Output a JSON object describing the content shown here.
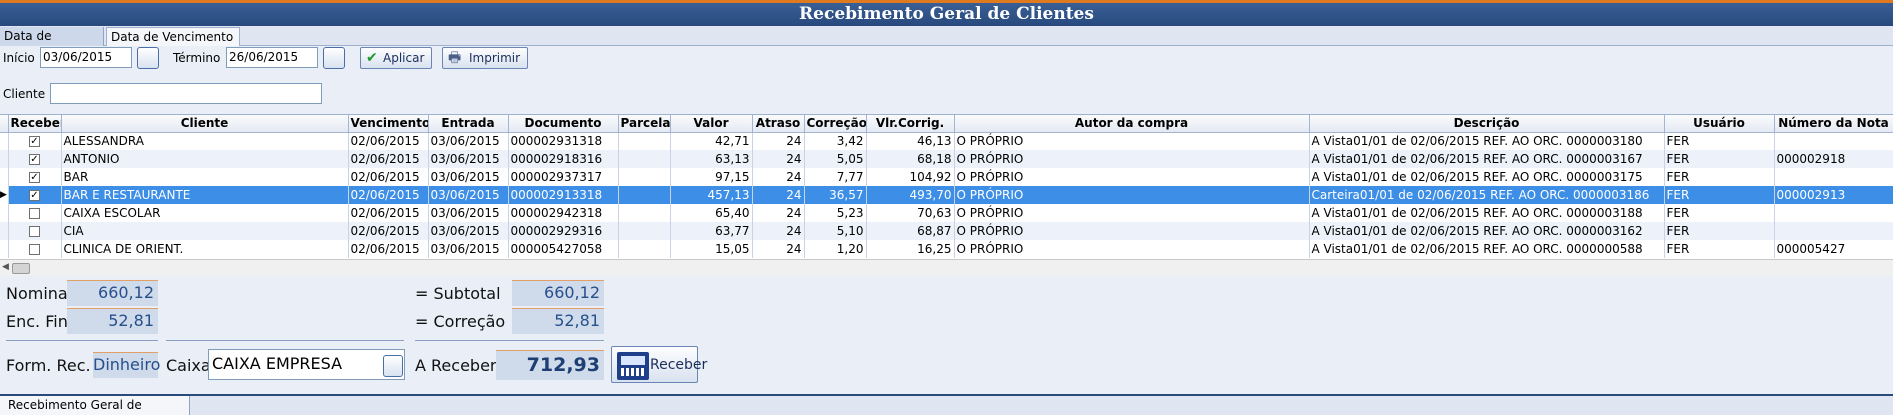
{
  "title": "Recebimento Geral de Clientes",
  "tabs": [
    "Data de Entrada",
    "Data de Vencimento"
  ],
  "filters": {
    "inicio_label": "Início",
    "inicio_value": "03/06/2015",
    "termino_label": "Término",
    "termino_value": "26/06/2015",
    "aplicar_label": "Aplicar",
    "imprimir_label": "Imprimir",
    "cliente_label": "Cliente",
    "cliente_value": ""
  },
  "grid": {
    "columns": [
      "Receber",
      "Cliente",
      "Vencimento",
      "Entrada",
      "Documento",
      "Parcela",
      "Valor",
      "Atraso",
      "Correção",
      "Vlr.Corrig.",
      "Autor da compra",
      "Descrição",
      "Usuário",
      "Número da Nota"
    ],
    "rows": [
      {
        "receber": true,
        "cliente": "ALESSANDRA",
        "vencimento": "02/06/2015",
        "entrada": "03/06/2015",
        "documento": "000002931318",
        "parcela": "",
        "valor": "42,71",
        "atraso": "24",
        "correcao": "3,42",
        "vlr_corrig": "46,13",
        "autor": "O PRÓPRIO",
        "descricao": "A Vista01/01 de 02/06/2015 REF. AO ORC. 0000003180",
        "usuario": "FER",
        "nota": ""
      },
      {
        "receber": true,
        "cliente": "ANTONIO",
        "vencimento": "02/06/2015",
        "entrada": "03/06/2015",
        "documento": "000002918316",
        "parcela": "",
        "valor": "63,13",
        "atraso": "24",
        "correcao": "5,05",
        "vlr_corrig": "68,18",
        "autor": "O PRÓPRIO",
        "descricao": "A Vista01/01 de 02/06/2015 REF. AO ORC. 0000003167",
        "usuario": "FER",
        "nota": "000002918"
      },
      {
        "receber": true,
        "cliente": "BAR",
        "vencimento": "02/06/2015",
        "entrada": "03/06/2015",
        "documento": "000002937317",
        "parcela": "",
        "valor": "97,15",
        "atraso": "24",
        "correcao": "7,77",
        "vlr_corrig": "104,92",
        "autor": "O PRÓPRIO",
        "descricao": "A Vista01/01 de 02/06/2015 REF. AO ORC. 0000003175",
        "usuario": "FER",
        "nota": ""
      },
      {
        "receber": true,
        "cliente": "BAR E RESTAURANTE",
        "vencimento": "02/06/2015",
        "entrada": "03/06/2015",
        "documento": "000002913318",
        "parcela": "",
        "valor": "457,13",
        "atraso": "24",
        "correcao": "36,57",
        "vlr_corrig": "493,70",
        "autor": "O PRÓPRIO",
        "descricao": "Carteira01/01 de 02/06/2015 REF. AO ORC. 0000003186",
        "usuario": "FER",
        "nota": "000002913",
        "selected": true
      },
      {
        "receber": false,
        "cliente": "CAIXA ESCOLAR",
        "vencimento": "02/06/2015",
        "entrada": "03/06/2015",
        "documento": "000002942318",
        "parcela": "",
        "valor": "65,40",
        "atraso": "24",
        "correcao": "5,23",
        "vlr_corrig": "70,63",
        "autor": "O PRÓPRIO",
        "descricao": "A Vista01/01 de 02/06/2015 REF. AO ORC. 0000003188",
        "usuario": "FER",
        "nota": ""
      },
      {
        "receber": false,
        "cliente": "CIA",
        "vencimento": "02/06/2015",
        "entrada": "03/06/2015",
        "documento": "000002929316",
        "parcela": "",
        "valor": "63,77",
        "atraso": "24",
        "correcao": "5,10",
        "vlr_corrig": "68,87",
        "autor": "O PRÓPRIO",
        "descricao": "A Vista01/01 de 02/06/2015 REF. AO ORC. 0000003162",
        "usuario": "FER",
        "nota": ""
      },
      {
        "receber": false,
        "cliente": "CLINICA DE ORIENT.",
        "vencimento": "02/06/2015",
        "entrada": "03/06/2015",
        "documento": "000005427058",
        "parcela": "",
        "valor": "15,05",
        "atraso": "24",
        "correcao": "1,20",
        "vlr_corrig": "16,25",
        "autor": "O PRÓPRIO",
        "descricao": "A Vista01/01 de 02/06/2015 REF. AO ORC. 0000000588",
        "usuario": "FER",
        "nota": "000005427"
      }
    ]
  },
  "summary": {
    "nominal_label": "Nominal",
    "nominal_value": "660,12",
    "enc_label": "Enc. Fin.",
    "enc_value": "52,81",
    "subtotal_label": "= Subtotal",
    "subtotal_value": "660,12",
    "correcao_label": "= Correção  +",
    "correcao_value": "52,81",
    "form_rec_label": "Form. Rec.",
    "form_rec_value": "Dinheiro",
    "caixa_label": "Caixa",
    "caixa_value": "CAIXA EMPRESA",
    "a_receber_label": "A Receber",
    "a_receber_value": "712,93",
    "receber_button": "Receber"
  },
  "status_tab": "Recebimento Geral de Clientes",
  "colors": {
    "accent": "#e07a1f",
    "titlebar": "#27497d",
    "selection": "#3d8ee6"
  },
  "icons": {
    "apply": "check-icon",
    "print": "printer-icon",
    "receive": "cash-register-icon"
  }
}
